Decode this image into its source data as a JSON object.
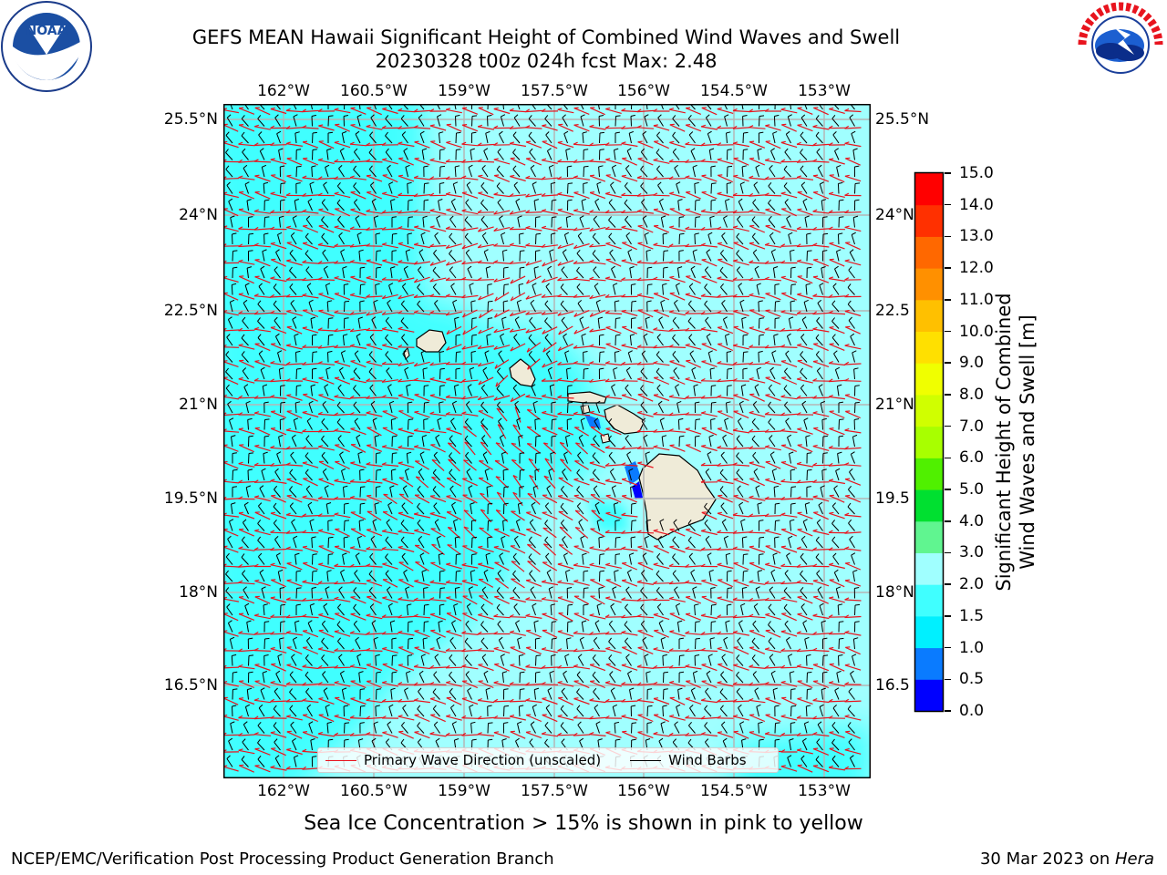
{
  "title_line1": "GEFS MEAN Hawaii Significant Height of Combined Wind Waves and Swell",
  "title_line2": "20230328 t00z 024h fcst   Max: 2.48",
  "lon_ticks": [
    "162°W",
    "160.5°W",
    "159°W",
    "157.5°W",
    "156°W",
    "154.5°W",
    "153°W"
  ],
  "lat_ticks": [
    "25.5°N",
    "24°N",
    "22.5°N",
    "21°N",
    "19.5°N",
    "18°N",
    "16.5°N"
  ],
  "lat_ticks_right": [
    "25.5°N",
    "24°N",
    "22.5",
    "21°N",
    "19.5",
    "18°N",
    "16.5"
  ],
  "legend": {
    "wave_label": "Primary Wave Direction (unscaled)",
    "barb_label": "Wind Barbs",
    "wave_color": "#e8141e",
    "barb_color": "#000000"
  },
  "colorbar": {
    "title_line1": "Significant Height of Combined",
    "title_line2": "Wind Waves and Swell [m]",
    "levels": [
      "0.0",
      "0.5",
      "1.0",
      "1.5",
      "2.0",
      "3.0",
      "4.0",
      "5.0",
      "6.0",
      "7.0",
      "8.0",
      "9.0",
      "10.0",
      "11.0",
      "12.0",
      "13.0",
      "14.0",
      "15.0"
    ],
    "colors": [
      "#0000ff",
      "#0a7bff",
      "#00f0ff",
      "#40ffff",
      "#a0ffff",
      "#60f590",
      "#00e030",
      "#50f000",
      "#a8ff00",
      "#d0ff00",
      "#f0ff00",
      "#ffe000",
      "#ffc000",
      "#ff9000",
      "#ff6800",
      "#ff3000",
      "#ff0000"
    ]
  },
  "sea_ice_note": "Sea Ice Concentration > 15% is shown in pink to yellow",
  "footer_left": "NCEP/EMC/Verification Post Processing Product Generation Branch",
  "footer_right_prefix": "30 Mar 2023 on ",
  "footer_right_host": "Hera",
  "logos": {
    "left": "NOAA",
    "right": "NATIONAL WEATHER SERVICE"
  }
}
